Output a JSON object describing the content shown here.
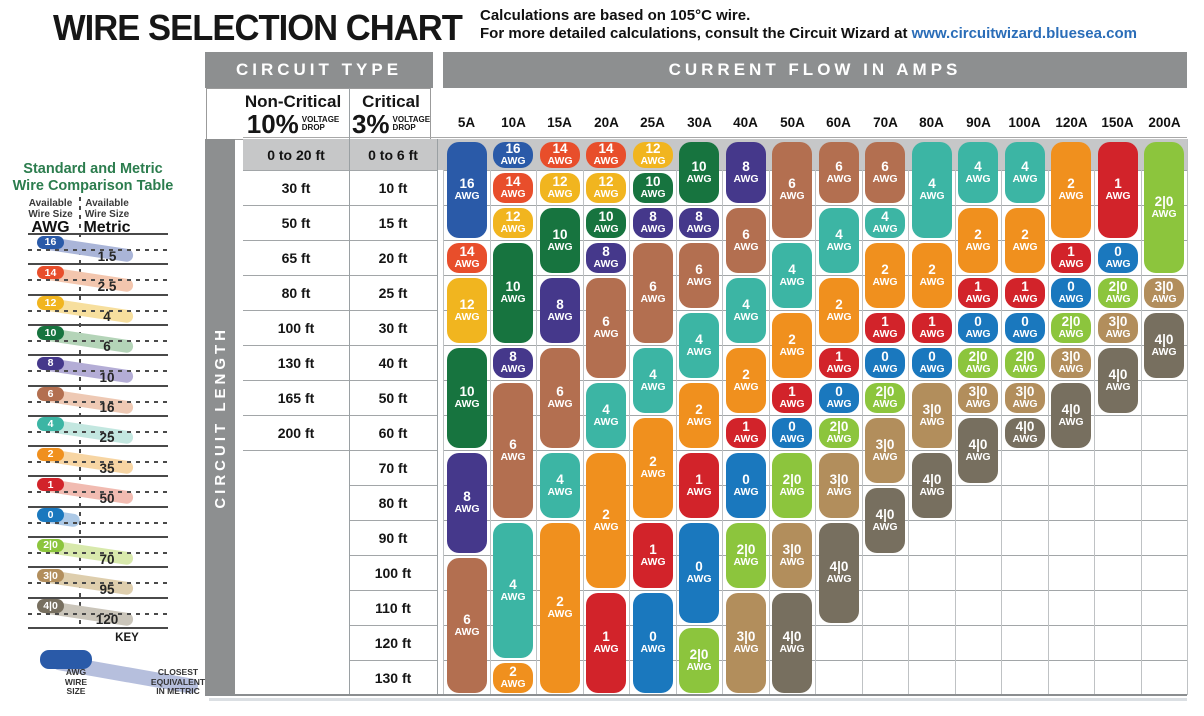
{
  "title": "WIRE SELECTION CHART",
  "subtitle": {
    "line1": "Calculations are based on 105°C wire.",
    "line2_prefix": "For more detailed calculations, consult the Circuit Wizard at ",
    "link": "www.circuitwizard.bluesea.com"
  },
  "comparison": {
    "heading1": "Standard and Metric",
    "heading2": "Wire Comparison Table",
    "left_header": {
      "line1": "Available",
      "line2": "Wire Size",
      "unit": "AWG"
    },
    "right_header": {
      "line1": "Available",
      "line2": "Wire Size",
      "unit": "Metric"
    },
    "rows": [
      {
        "awg": "16",
        "metric": "1.5"
      },
      {
        "awg": "14",
        "metric": "2.5"
      },
      {
        "awg": "12",
        "metric": "4"
      },
      {
        "awg": "10",
        "metric": "6"
      },
      {
        "awg": "8",
        "metric": "10"
      },
      {
        "awg": "6",
        "metric": "16"
      },
      {
        "awg": "4",
        "metric": "25"
      },
      {
        "awg": "2",
        "metric": "35"
      },
      {
        "awg": "1",
        "metric": "50"
      },
      {
        "awg": "0",
        "metric": null
      },
      {
        "awg": "2|0",
        "metric": "70"
      },
      {
        "awg": "3|0",
        "metric": "95"
      },
      {
        "awg": "4|0",
        "metric": "120"
      }
    ],
    "key": {
      "title": "KEY",
      "left_lines": [
        "AWG",
        "WIRE",
        "SIZE"
      ],
      "right_lines": [
        "CLOSEST",
        "EQUIVALENT",
        "IN METRIC"
      ]
    }
  },
  "table": {
    "circuit_type_header": "CIRCUIT TYPE",
    "current_flow_header": "CURRENT FLOW IN AMPS",
    "circuit_length_label": "CIRCUIT LENGTH",
    "non_critical": {
      "title": "Non-Critical",
      "pct": "10%",
      "note1": "VOLTAGE",
      "note2": "DROP"
    },
    "critical": {
      "title": "Critical",
      "pct": "3%",
      "note1": "VOLTAGE",
      "note2": "DROP"
    },
    "pill_unit": "AWG"
  },
  "chart_data": {
    "type": "table",
    "title": "Wire gauge (AWG) by circuit length and current flow",
    "row_labels_non_critical": [
      "0 to 20 ft",
      "30 ft",
      "50 ft",
      "65 ft",
      "80 ft",
      "100 ft",
      "130 ft",
      "165 ft",
      "200 ft",
      "",
      "",
      "",
      "",
      "",
      "",
      ""
    ],
    "row_labels_critical": [
      "0 to 6 ft",
      "10 ft",
      "15 ft",
      "20 ft",
      "25 ft",
      "30 ft",
      "40 ft",
      "50 ft",
      "60 ft",
      "70 ft",
      "80 ft",
      "90 ft",
      "100 ft",
      "110 ft",
      "120 ft",
      "130 ft"
    ],
    "columns": [
      {
        "label": "5A",
        "awg": [
          "16",
          "16",
          "16",
          "14",
          "12",
          "12",
          "10",
          "10",
          "10",
          "8",
          "8",
          "8",
          "6",
          "6",
          "6",
          "6"
        ]
      },
      {
        "label": "10A",
        "awg": [
          "16",
          "14",
          "12",
          "10",
          "10",
          "10",
          "8",
          "6",
          "6",
          "6",
          "6",
          "4",
          "4",
          "4",
          "4",
          "2"
        ]
      },
      {
        "label": "15A",
        "awg": [
          "14",
          "12",
          "10",
          "10",
          "8",
          "8",
          "6",
          "6",
          "6",
          "4",
          "4",
          "2",
          "2",
          "2",
          "2",
          "2"
        ]
      },
      {
        "label": "20A",
        "awg": [
          "14",
          "12",
          "10",
          "8",
          "6",
          "6",
          "6",
          "4",
          "4",
          "2",
          "2",
          "2",
          "2",
          "1",
          "1",
          "1"
        ]
      },
      {
        "label": "25A",
        "awg": [
          "12",
          "10",
          "8",
          "6",
          "6",
          "6",
          "4",
          "4",
          "2",
          "2",
          "2",
          "1",
          "1",
          "0",
          "0",
          "0"
        ]
      },
      {
        "label": "30A",
        "awg": [
          "10",
          "10",
          "8",
          "6",
          "6",
          "4",
          "4",
          "2",
          "2",
          "1",
          "1",
          "0",
          "0",
          "0",
          "2|0",
          "2|0"
        ]
      },
      {
        "label": "40A",
        "awg": [
          "8",
          "8",
          "6",
          "6",
          "4",
          "4",
          "2",
          "2",
          "1",
          "0",
          "0",
          "2|0",
          "2|0",
          "3|0",
          "3|0",
          "3|0"
        ]
      },
      {
        "label": "50A",
        "awg": [
          "6",
          "6",
          "6",
          "4",
          "4",
          "2",
          "2",
          "1",
          "0",
          "2|0",
          "2|0",
          "3|0",
          "3|0",
          "4|0",
          "4|0",
          "4|0"
        ]
      },
      {
        "label": "60A",
        "awg": [
          "6",
          "6",
          "4",
          "4",
          "2",
          "2",
          "1",
          "0",
          "2|0",
          "3|0",
          "3|0",
          "4|0",
          "4|0",
          "4|0",
          null,
          null
        ]
      },
      {
        "label": "70A",
        "awg": [
          "6",
          "6",
          "4",
          "2",
          "2",
          "1",
          "0",
          "2|0",
          "3|0",
          "3|0",
          "4|0",
          "4|0",
          null,
          null,
          null,
          null
        ]
      },
      {
        "label": "80A",
        "awg": [
          "4",
          "4",
          "4",
          "2",
          "2",
          "1",
          "0",
          "3|0",
          "3|0",
          "4|0",
          "4|0",
          null,
          null,
          null,
          null,
          null
        ]
      },
      {
        "label": "90A",
        "awg": [
          "4",
          "4",
          "2",
          "2",
          "1",
          "0",
          "2|0",
          "3|0",
          "4|0",
          "4|0",
          null,
          null,
          null,
          null,
          null,
          null
        ]
      },
      {
        "label": "100A",
        "awg": [
          "4",
          "4",
          "2",
          "2",
          "1",
          "0",
          "2|0",
          "3|0",
          "4|0",
          null,
          null,
          null,
          null,
          null,
          null,
          null
        ]
      },
      {
        "label": "120A",
        "awg": [
          "2",
          "2",
          "2",
          "1",
          "0",
          "2|0",
          "3|0",
          "4|0",
          "4|0",
          null,
          null,
          null,
          null,
          null,
          null,
          null
        ]
      },
      {
        "label": "150A",
        "awg": [
          "1",
          "1",
          "1",
          "0",
          "2|0",
          "3|0",
          "4|0",
          "4|0",
          null,
          null,
          null,
          null,
          null,
          null,
          null,
          null
        ]
      },
      {
        "label": "200A",
        "awg": [
          "2|0",
          "2|0",
          "2|0",
          "2|0",
          "3|0",
          "4|0",
          "4|0",
          null,
          null,
          null,
          null,
          null,
          null,
          null,
          null,
          null
        ]
      }
    ]
  },
  "colors": {
    "awg": {
      "16": "#2a5aa8",
      "14": "#e84e2b",
      "12": "#f1b51f",
      "10": "#17743f",
      "8": "#45388b",
      "6": "#b36f50",
      "4": "#3cb5a4",
      "2": "#f0901e",
      "1": "#d2232a",
      "0": "#1a78be",
      "2|0": "#8cc53d",
      "3|0": "#b28e5c",
      "4|0": "#776f5f"
    },
    "trail": {
      "16": "#aab5d8",
      "14": "#f3c6ae",
      "12": "#f7df9e",
      "10": "#b4d4b8",
      "8": "#b4add6",
      "6": "#eec9b4",
      "4": "#c3e7e0",
      "2": "#f7d5a3",
      "1": "#f1bbb1",
      "0": "#adc9e6",
      "2|0": "#d8e9ac",
      "3|0": "#decead",
      "4|0": "#cac5ba",
      "key": "#b6bfdd"
    },
    "header_gray": "#8d8f90",
    "band_gray": "#c6c7c8",
    "link_blue": "#2a6db8",
    "sidebar_green": "#2c7d4e"
  }
}
